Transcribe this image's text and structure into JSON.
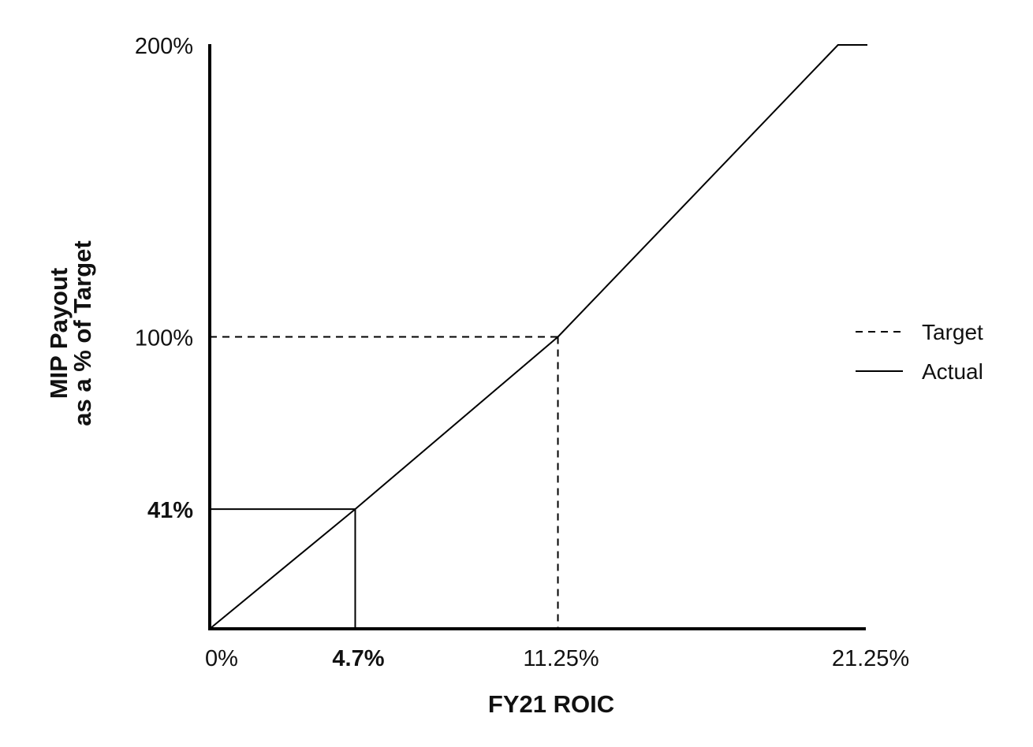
{
  "chart_data": {
    "type": "line",
    "xlabel": "FY21 ROIC",
    "ylabel_lines": [
      "MIP Payout",
      "as a % of Target"
    ],
    "x_ticks": [
      {
        "value": 0,
        "label": "0%",
        "bold": false
      },
      {
        "value": 4.7,
        "label": "4.7%",
        "bold": true
      },
      {
        "value": 11.25,
        "label": "11.25%",
        "bold": false
      },
      {
        "value": 21.25,
        "label": "21.25%",
        "bold": false
      }
    ],
    "y_ticks": [
      {
        "value": 41,
        "label": "41%",
        "bold": true
      },
      {
        "value": 100,
        "label": "100%",
        "bold": false
      },
      {
        "value": 200,
        "label": "200%",
        "bold": false
      }
    ],
    "series": [
      {
        "name": "Actual",
        "style": "solid",
        "points": [
          [
            0,
            0
          ],
          [
            4.7,
            41
          ],
          [
            11.25,
            100
          ],
          [
            20.3,
            200
          ],
          [
            21.25,
            200
          ]
        ]
      }
    ],
    "reference_lines": [
      {
        "series": "Target",
        "style": "dashed",
        "x": 11.25,
        "y": 100
      },
      {
        "series": "Actual",
        "style": "solid",
        "x": 4.7,
        "y": 41
      }
    ],
    "legend": {
      "position": "right",
      "entries": [
        {
          "name": "Target",
          "style": "dashed"
        },
        {
          "name": "Actual",
          "style": "solid"
        }
      ]
    },
    "xlim": [
      0,
      21.25
    ],
    "ylim": [
      0,
      200
    ],
    "grid": false,
    "colors": {
      "line": "#000000",
      "text": "#111111"
    }
  }
}
